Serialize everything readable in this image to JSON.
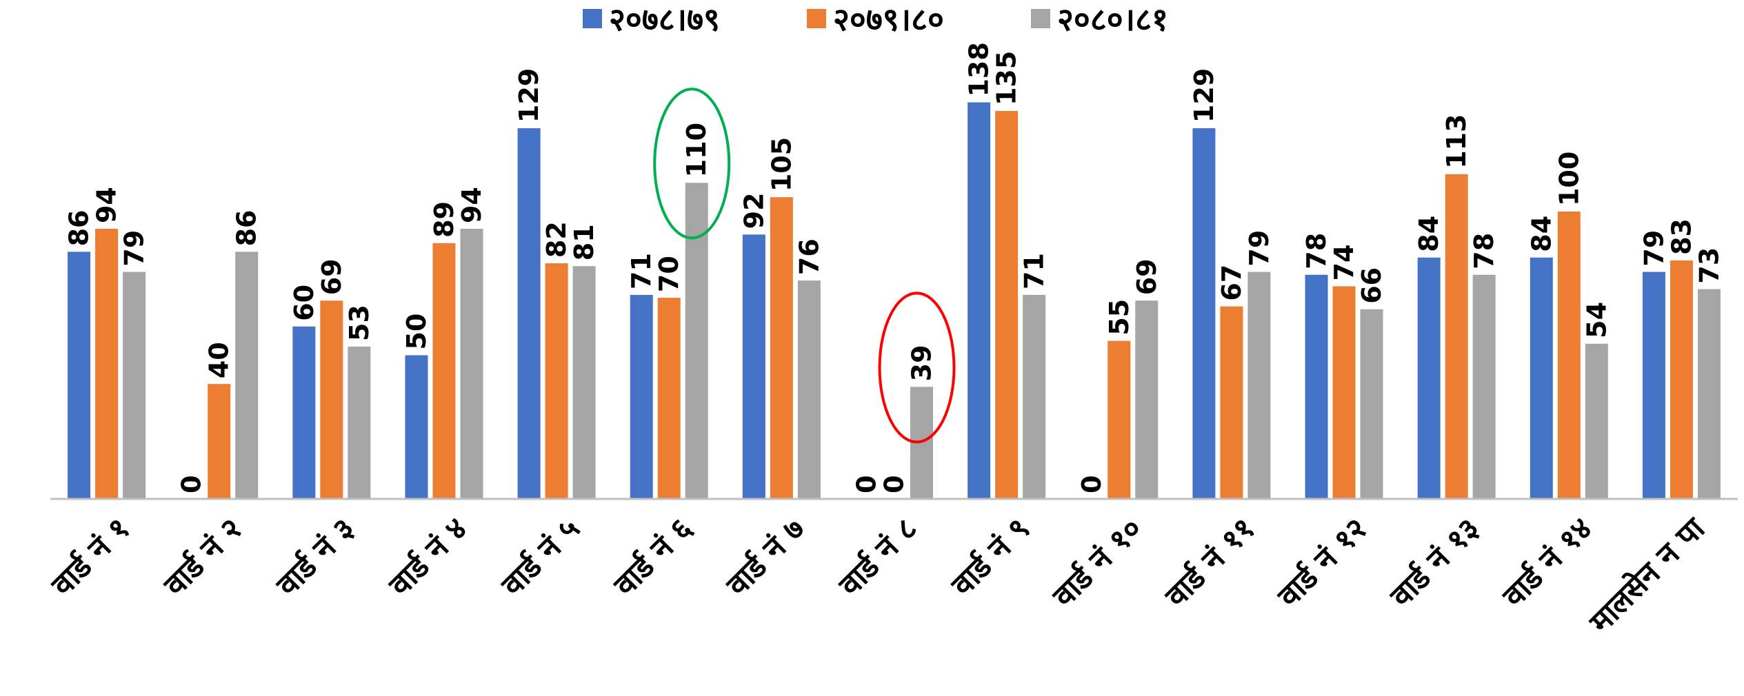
{
  "chart_data": {
    "type": "bar",
    "categories": [
      "वार्ड नं १",
      "वार्ड नं २",
      "वार्ड नं ३",
      "वार्ड नं ४",
      "वार्ड नं ५",
      "वार्ड नं ६",
      "वार्ड नं ७",
      "वार्ड नं ८",
      "वार्ड नं ९",
      "वार्ड नं १०",
      "वार्ड नं ११",
      "वार्ड नं १२",
      "वार्ड नं १३",
      "वार्ड नं १४",
      "मालसेन न पा"
    ],
    "series": [
      {
        "name": "२०७८।७९",
        "color": "#4472C4",
        "values": [
          86,
          0,
          60,
          50,
          129,
          71,
          92,
          0,
          138,
          0,
          129,
          78,
          84,
          84,
          79
        ]
      },
      {
        "name": "२०७९।८०",
        "color": "#ED7D31",
        "values": [
          94,
          40,
          69,
          89,
          82,
          70,
          105,
          0,
          135,
          55,
          67,
          74,
          113,
          100,
          83
        ]
      },
      {
        "name": "२०८०।८१",
        "color": "#A5A5A5",
        "values": [
          79,
          86,
          53,
          94,
          81,
          110,
          76,
          39,
          71,
          69,
          79,
          66,
          78,
          54,
          73
        ]
      }
    ],
    "ylim": [
      0,
      150
    ],
    "grid": false,
    "legend": "top-center",
    "annotations": [
      {
        "shape": "ellipse",
        "color": "#00B050",
        "category": "वार्ड नं ६",
        "series": "२०८०।८१"
      },
      {
        "shape": "ellipse",
        "color": "#FF0000",
        "category": "वार्ड नं ८",
        "series": "२०८०।८१"
      }
    ]
  }
}
